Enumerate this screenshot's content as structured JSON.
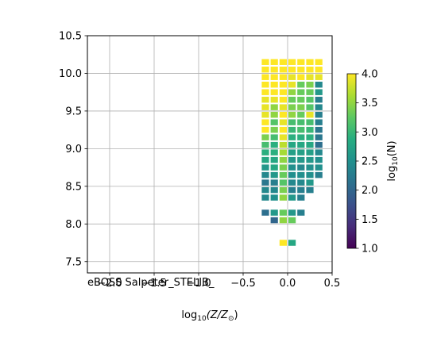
{
  "chart_data": {
    "type": "heatmap",
    "title": "",
    "xlabel_main": "log",
    "xlabel_sub": "10",
    "xlabel_rest": "(Z/Z",
    "xlabel_sun": "⊙",
    "xlabel_close": ")",
    "ylabel": "",
    "xlim": [
      -2.25,
      0.5
    ],
    "ylim": [
      7.35,
      10.5
    ],
    "x_ticks": [
      -2.0,
      -1.5,
      -1.0,
      -0.5,
      0.0,
      0.5
    ],
    "x_tick_labels": [
      "−2.0",
      "−1.5",
      "−1.0",
      "−0.5",
      "0.0",
      "0.5"
    ],
    "y_ticks": [
      7.5,
      8.0,
      8.5,
      9.0,
      9.5,
      10.0,
      10.5
    ],
    "y_tick_labels": [
      "7.5",
      "8.0",
      "8.5",
      "9.0",
      "9.5",
      "10.0",
      "10.5"
    ],
    "grid": true,
    "annotation": "eBOSS Salpeter_STELIB_",
    "colorbar": {
      "label_main": "log",
      "label_sub": "10",
      "label_rest": "(N)",
      "range": [
        1.0,
        4.0
      ],
      "ticks": [
        1.0,
        1.5,
        2.0,
        2.5,
        3.0,
        3.5,
        4.0
      ],
      "tick_labels": [
        "1.0",
        "1.5",
        "2.0",
        "2.5",
        "3.0",
        "3.5",
        "4.0"
      ],
      "colormap": "viridis"
    },
    "cell_size": {
      "dx": 0.1,
      "dy": 0.1
    },
    "columns_x": [
      -0.25,
      -0.15,
      -0.05,
      0.05,
      0.15,
      0.25,
      0.35
    ],
    "cells": [
      {
        "x": -0.25,
        "y": 10.15,
        "v": 4.0
      },
      {
        "x": -0.25,
        "y": 10.05,
        "v": 4.0
      },
      {
        "x": -0.25,
        "y": 9.95,
        "v": 4.0
      },
      {
        "x": -0.25,
        "y": 9.85,
        "v": 4.0
      },
      {
        "x": -0.25,
        "y": 9.75,
        "v": 4.0
      },
      {
        "x": -0.25,
        "y": 9.65,
        "v": 3.9
      },
      {
        "x": -0.25,
        "y": 9.55,
        "v": 3.9
      },
      {
        "x": -0.25,
        "y": 9.45,
        "v": 3.9
      },
      {
        "x": -0.25,
        "y": 9.35,
        "v": 4.0
      },
      {
        "x": -0.25,
        "y": 9.25,
        "v": 4.0
      },
      {
        "x": -0.25,
        "y": 9.15,
        "v": 3.4
      },
      {
        "x": -0.25,
        "y": 9.05,
        "v": 3.1
      },
      {
        "x": -0.25,
        "y": 8.95,
        "v": 2.9
      },
      {
        "x": -0.25,
        "y": 8.85,
        "v": 2.8
      },
      {
        "x": -0.25,
        "y": 8.75,
        "v": 2.6
      },
      {
        "x": -0.25,
        "y": 8.65,
        "v": 2.4
      },
      {
        "x": -0.25,
        "y": 8.55,
        "v": 2.2
      },
      {
        "x": -0.25,
        "y": 8.45,
        "v": 2.4
      },
      {
        "x": -0.25,
        "y": 8.35,
        "v": 2.4
      },
      {
        "x": -0.25,
        "y": 8.15,
        "v": 2.1
      },
      {
        "x": -0.15,
        "y": 10.15,
        "v": 4.0
      },
      {
        "x": -0.15,
        "y": 10.05,
        "v": 4.0
      },
      {
        "x": -0.15,
        "y": 9.95,
        "v": 4.0
      },
      {
        "x": -0.15,
        "y": 9.85,
        "v": 4.0
      },
      {
        "x": -0.15,
        "y": 9.75,
        "v": 4.0
      },
      {
        "x": -0.15,
        "y": 9.65,
        "v": 3.9
      },
      {
        "x": -0.15,
        "y": 9.55,
        "v": 3.5
      },
      {
        "x": -0.15,
        "y": 9.45,
        "v": 3.5
      },
      {
        "x": -0.15,
        "y": 9.35,
        "v": 3.2
      },
      {
        "x": -0.15,
        "y": 9.25,
        "v": 3.4
      },
      {
        "x": -0.15,
        "y": 9.15,
        "v": 3.1
      },
      {
        "x": -0.15,
        "y": 9.05,
        "v": 2.9
      },
      {
        "x": -0.15,
        "y": 8.95,
        "v": 2.9
      },
      {
        "x": -0.15,
        "y": 8.85,
        "v": 2.8
      },
      {
        "x": -0.15,
        "y": 8.75,
        "v": 2.8
      },
      {
        "x": -0.15,
        "y": 8.65,
        "v": 2.6
      },
      {
        "x": -0.15,
        "y": 8.55,
        "v": 2.3
      },
      {
        "x": -0.15,
        "y": 8.45,
        "v": 2.4
      },
      {
        "x": -0.15,
        "y": 8.35,
        "v": 2.5
      },
      {
        "x": -0.15,
        "y": 8.15,
        "v": 2.6
      },
      {
        "x": -0.15,
        "y": 8.05,
        "v": 2.0
      },
      {
        "x": -0.05,
        "y": 10.15,
        "v": 4.0
      },
      {
        "x": -0.05,
        "y": 10.05,
        "v": 4.0
      },
      {
        "x": -0.05,
        "y": 9.95,
        "v": 4.0
      },
      {
        "x": -0.05,
        "y": 9.85,
        "v": 4.0
      },
      {
        "x": -0.05,
        "y": 9.75,
        "v": 4.0
      },
      {
        "x": -0.05,
        "y": 9.65,
        "v": 4.0
      },
      {
        "x": -0.05,
        "y": 9.55,
        "v": 3.9
      },
      {
        "x": -0.05,
        "y": 9.45,
        "v": 4.0
      },
      {
        "x": -0.05,
        "y": 9.35,
        "v": 3.9
      },
      {
        "x": -0.05,
        "y": 9.25,
        "v": 4.0
      },
      {
        "x": -0.05,
        "y": 9.15,
        "v": 3.9
      },
      {
        "x": -0.05,
        "y": 9.05,
        "v": 3.7
      },
      {
        "x": -0.05,
        "y": 8.95,
        "v": 3.6
      },
      {
        "x": -0.05,
        "y": 8.85,
        "v": 3.5
      },
      {
        "x": -0.05,
        "y": 8.75,
        "v": 3.4
      },
      {
        "x": -0.05,
        "y": 8.65,
        "v": 3.3
      },
      {
        "x": -0.05,
        "y": 8.55,
        "v": 3.2
      },
      {
        "x": -0.05,
        "y": 8.45,
        "v": 3.4
      },
      {
        "x": -0.05,
        "y": 8.35,
        "v": 3.5
      },
      {
        "x": -0.05,
        "y": 8.15,
        "v": 3.3
      },
      {
        "x": -0.05,
        "y": 8.05,
        "v": 3.5
      },
      {
        "x": -0.05,
        "y": 7.75,
        "v": 4.0
      },
      {
        "x": 0.05,
        "y": 10.15,
        "v": 4.0
      },
      {
        "x": 0.05,
        "y": 10.05,
        "v": 4.0
      },
      {
        "x": 0.05,
        "y": 9.95,
        "v": 3.9
      },
      {
        "x": 0.05,
        "y": 9.85,
        "v": 3.9
      },
      {
        "x": 0.05,
        "y": 9.75,
        "v": 3.5
      },
      {
        "x": 0.05,
        "y": 9.65,
        "v": 3.3
      },
      {
        "x": 0.05,
        "y": 9.55,
        "v": 3.4
      },
      {
        "x": 0.05,
        "y": 9.45,
        "v": 3.5
      },
      {
        "x": 0.05,
        "y": 9.35,
        "v": 3.1
      },
      {
        "x": 0.05,
        "y": 9.25,
        "v": 3.0
      },
      {
        "x": 0.05,
        "y": 9.15,
        "v": 2.9
      },
      {
        "x": 0.05,
        "y": 9.05,
        "v": 2.8
      },
      {
        "x": 0.05,
        "y": 8.95,
        "v": 2.7
      },
      {
        "x": 0.05,
        "y": 8.85,
        "v": 2.6
      },
      {
        "x": 0.05,
        "y": 8.75,
        "v": 2.5
      },
      {
        "x": 0.05,
        "y": 8.65,
        "v": 2.5
      },
      {
        "x": 0.05,
        "y": 8.55,
        "v": 2.4
      },
      {
        "x": 0.05,
        "y": 8.45,
        "v": 2.3
      },
      {
        "x": 0.05,
        "y": 8.35,
        "v": 2.6
      },
      {
        "x": 0.05,
        "y": 8.15,
        "v": 2.6
      },
      {
        "x": 0.05,
        "y": 8.05,
        "v": 3.3
      },
      {
        "x": 0.05,
        "y": 7.75,
        "v": 2.8
      },
      {
        "x": 0.15,
        "y": 10.15,
        "v": 4.0
      },
      {
        "x": 0.15,
        "y": 10.05,
        "v": 4.0
      },
      {
        "x": 0.15,
        "y": 9.95,
        "v": 4.0
      },
      {
        "x": 0.15,
        "y": 9.85,
        "v": 3.3
      },
      {
        "x": 0.15,
        "y": 9.75,
        "v": 3.3
      },
      {
        "x": 0.15,
        "y": 9.65,
        "v": 3.3
      },
      {
        "x": 0.15,
        "y": 9.55,
        "v": 3.4
      },
      {
        "x": 0.15,
        "y": 9.45,
        "v": 3.3
      },
      {
        "x": 0.15,
        "y": 9.35,
        "v": 3.1
      },
      {
        "x": 0.15,
        "y": 9.25,
        "v": 3.1
      },
      {
        "x": 0.15,
        "y": 9.15,
        "v": 2.9
      },
      {
        "x": 0.15,
        "y": 9.05,
        "v": 2.8
      },
      {
        "x": 0.15,
        "y": 8.95,
        "v": 2.7
      },
      {
        "x": 0.15,
        "y": 8.85,
        "v": 2.6
      },
      {
        "x": 0.15,
        "y": 8.75,
        "v": 2.4
      },
      {
        "x": 0.15,
        "y": 8.65,
        "v": 2.5
      },
      {
        "x": 0.15,
        "y": 8.55,
        "v": 2.4
      },
      {
        "x": 0.15,
        "y": 8.45,
        "v": 2.3
      },
      {
        "x": 0.15,
        "y": 8.35,
        "v": 2.3
      },
      {
        "x": 0.15,
        "y": 8.15,
        "v": 2.3
      },
      {
        "x": 0.25,
        "y": 10.15,
        "v": 4.0
      },
      {
        "x": 0.25,
        "y": 10.05,
        "v": 4.0
      },
      {
        "x": 0.25,
        "y": 9.95,
        "v": 3.9
      },
      {
        "x": 0.25,
        "y": 9.85,
        "v": 3.4
      },
      {
        "x": 0.25,
        "y": 9.75,
        "v": 3.3
      },
      {
        "x": 0.25,
        "y": 9.65,
        "v": 3.2
      },
      {
        "x": 0.25,
        "y": 9.55,
        "v": 3.2
      },
      {
        "x": 0.25,
        "y": 9.45,
        "v": 3.9
      },
      {
        "x": 0.25,
        "y": 9.35,
        "v": 3.1
      },
      {
        "x": 0.25,
        "y": 9.25,
        "v": 3.0
      },
      {
        "x": 0.25,
        "y": 9.15,
        "v": 2.9
      },
      {
        "x": 0.25,
        "y": 9.05,
        "v": 2.8
      },
      {
        "x": 0.25,
        "y": 8.95,
        "v": 2.7
      },
      {
        "x": 0.25,
        "y": 8.85,
        "v": 2.6
      },
      {
        "x": 0.25,
        "y": 8.75,
        "v": 2.5
      },
      {
        "x": 0.25,
        "y": 8.65,
        "v": 2.5
      },
      {
        "x": 0.25,
        "y": 8.55,
        "v": 2.6
      },
      {
        "x": 0.25,
        "y": 8.45,
        "v": 2.3
      },
      {
        "x": 0.35,
        "y": 10.15,
        "v": 4.0
      },
      {
        "x": 0.35,
        "y": 10.05,
        "v": 4.0
      },
      {
        "x": 0.35,
        "y": 9.95,
        "v": 3.9
      },
      {
        "x": 0.35,
        "y": 9.85,
        "v": 2.4
      },
      {
        "x": 0.35,
        "y": 9.75,
        "v": 2.6
      },
      {
        "x": 0.35,
        "y": 9.65,
        "v": 2.3
      },
      {
        "x": 0.35,
        "y": 9.55,
        "v": 2.4
      },
      {
        "x": 0.35,
        "y": 9.45,
        "v": 2.3
      },
      {
        "x": 0.35,
        "y": 9.35,
        "v": 2.3
      },
      {
        "x": 0.35,
        "y": 9.25,
        "v": 2.2
      },
      {
        "x": 0.35,
        "y": 9.15,
        "v": 2.2
      },
      {
        "x": 0.35,
        "y": 9.05,
        "v": 2.1
      },
      {
        "x": 0.35,
        "y": 8.95,
        "v": 2.4
      },
      {
        "x": 0.35,
        "y": 8.85,
        "v": 2.5
      },
      {
        "x": 0.35,
        "y": 8.75,
        "v": 2.5
      },
      {
        "x": 0.35,
        "y": 8.65,
        "v": 2.3
      }
    ]
  }
}
